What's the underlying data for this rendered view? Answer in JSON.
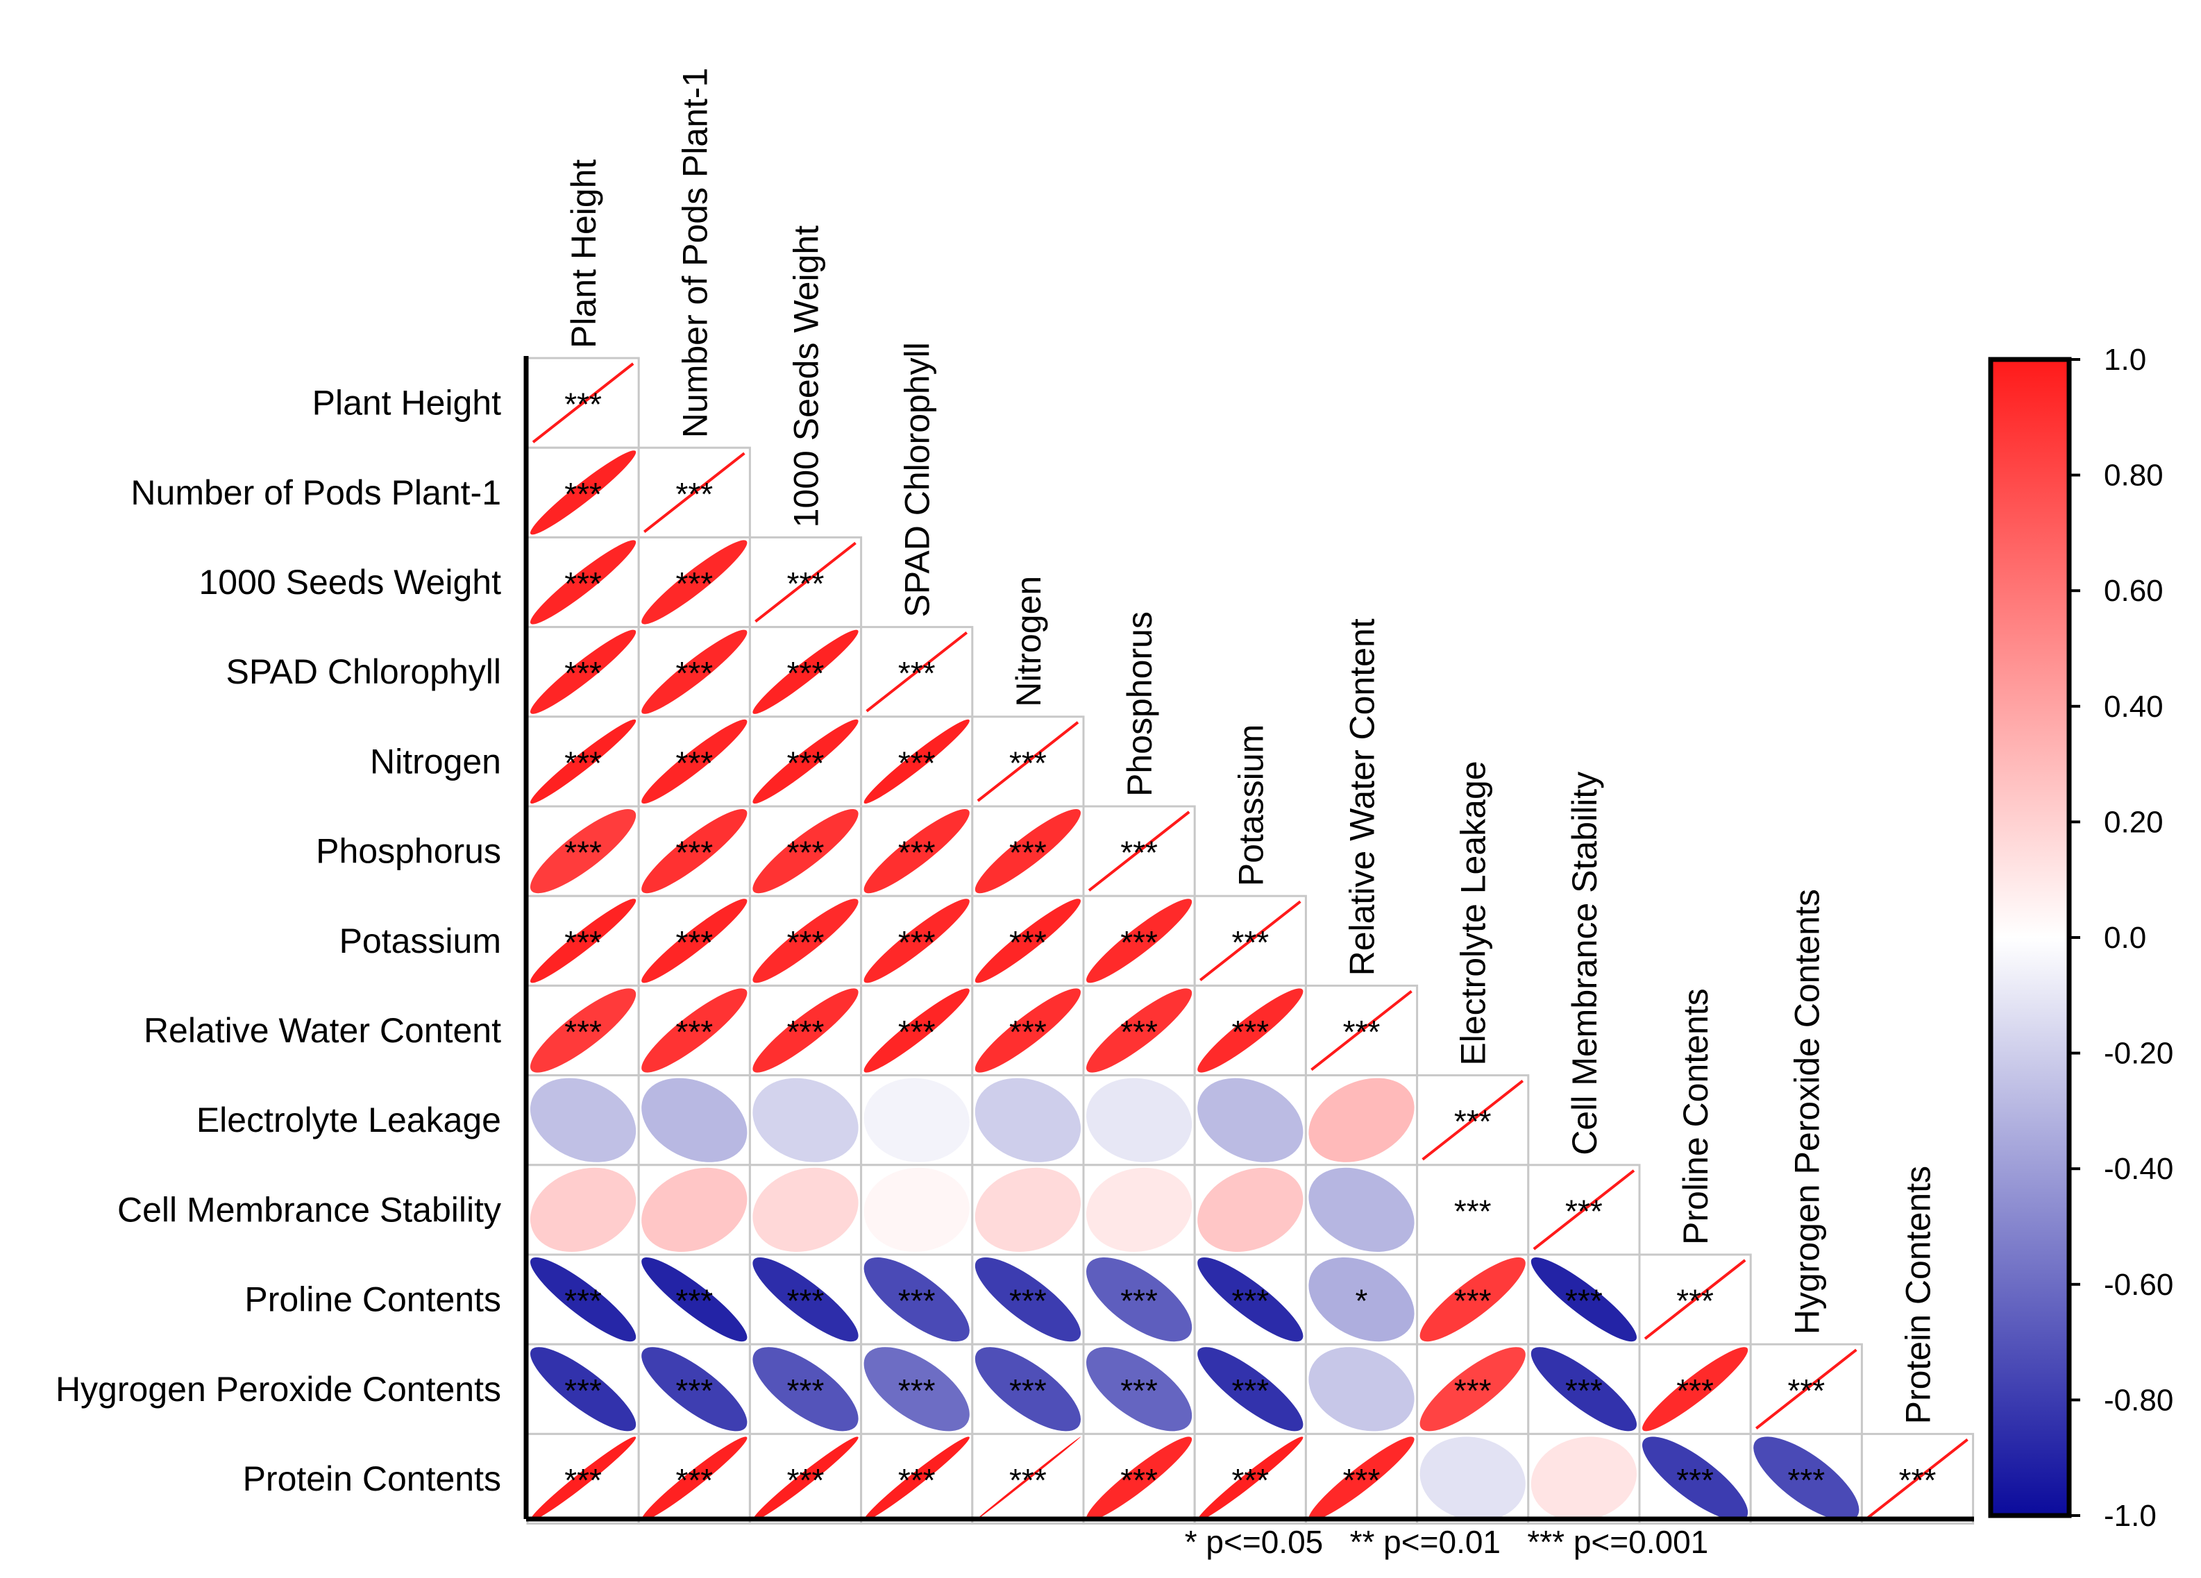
{
  "chart_data": {
    "type": "correlogram",
    "title": "",
    "variables": [
      "Plant Height",
      "Number of Pods Plant-1",
      "1000 Seeds Weight",
      "SPAD Chlorophyll",
      "Nitrogen",
      "Phosphorus",
      "Potassium",
      "Relative Water Content",
      "Electrolyte Leakage",
      "Cell Membrance Stability",
      "Proline Contents",
      "Hygrogen Peroxide Contents",
      "Protein Contents"
    ],
    "correlations": [
      [
        1.0
      ],
      [
        0.96,
        1.0
      ],
      [
        0.95,
        0.94,
        1.0
      ],
      [
        0.95,
        0.94,
        0.96,
        1.0
      ],
      [
        0.97,
        0.95,
        0.96,
        0.97,
        1.0
      ],
      [
        0.85,
        0.9,
        0.89,
        0.91,
        0.91,
        1.0
      ],
      [
        0.96,
        0.95,
        0.93,
        0.94,
        0.95,
        0.93,
        1.0
      ],
      [
        0.86,
        0.89,
        0.91,
        0.95,
        0.91,
        0.89,
        0.93,
        1.0
      ],
      [
        -0.26,
        -0.29,
        -0.18,
        -0.05,
        -0.2,
        -0.1,
        -0.28,
        0.3,
        1.0
      ],
      [
        0.22,
        0.25,
        0.17,
        0.04,
        0.16,
        0.1,
        0.25,
        -0.3,
        0.0,
        1.0
      ],
      [
        -0.89,
        -0.9,
        -0.86,
        -0.74,
        -0.8,
        -0.66,
        -0.87,
        -0.33,
        0.86,
        -0.9,
        1.0
      ],
      [
        -0.84,
        -0.79,
        -0.7,
        -0.6,
        -0.72,
        -0.63,
        -0.84,
        -0.23,
        0.82,
        -0.84,
        0.93,
        1.0
      ],
      [
        0.98,
        0.97,
        0.98,
        0.98,
        1.0,
        0.94,
        0.98,
        0.94,
        -0.12,
        0.12,
        -0.8,
        -0.74,
        1.0
      ]
    ],
    "significance": [
      [
        "***"
      ],
      [
        "***",
        "***"
      ],
      [
        "***",
        "***",
        "***"
      ],
      [
        "***",
        "***",
        "***",
        "***"
      ],
      [
        "***",
        "***",
        "***",
        "***",
        "***"
      ],
      [
        "***",
        "***",
        "***",
        "***",
        "***",
        "***"
      ],
      [
        "***",
        "***",
        "***",
        "***",
        "***",
        "***",
        "***"
      ],
      [
        "***",
        "***",
        "***",
        "***",
        "***",
        "***",
        "***",
        "***"
      ],
      [
        "",
        "",
        "",
        "",
        "",
        "",
        "",
        "",
        "***"
      ],
      [
        "",
        "",
        "",
        "",
        "",
        "",
        "",
        "",
        "***",
        "***"
      ],
      [
        "***",
        "***",
        "***",
        "***",
        "***",
        "***",
        "***",
        "*",
        "***",
        "***",
        "***"
      ],
      [
        "***",
        "***",
        "***",
        "***",
        "***",
        "***",
        "***",
        "",
        "***",
        "***",
        "***",
        "***"
      ],
      [
        "***",
        "***",
        "***",
        "***",
        "***",
        "***",
        "***",
        "***",
        "",
        "",
        "***",
        "***",
        "***"
      ]
    ],
    "colorbar": {
      "min": -1.0,
      "max": 1.0,
      "ticks": [
        "1.0",
        "0.80",
        "0.60",
        "0.40",
        "0.20",
        "0.0",
        "-0.20",
        "-0.40",
        "-0.60",
        "-0.80",
        "-1.0"
      ],
      "low_color": "#0b0b9c",
      "mid_color": "#ffffff",
      "high_color": "#ff1a1a"
    },
    "diagonal_line_color": "#ff1a1a",
    "significance_note": "* p<=0.05   ** p<=0.01   *** p<=0.001"
  }
}
